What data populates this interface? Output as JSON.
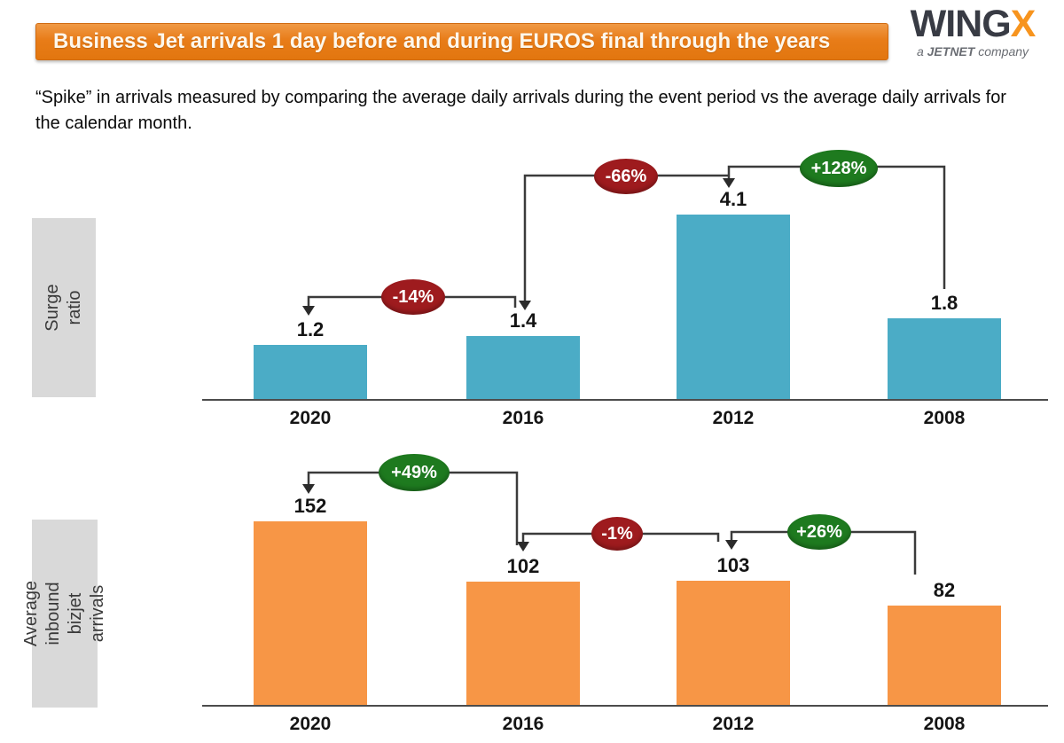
{
  "header": {
    "title": "Business Jet arrivals 1 day before and during EUROS final through the years",
    "logo": {
      "wing": "WING",
      "x": "X",
      "tagline_prefix": "a ",
      "tagline_brand": "JETNET",
      "tagline_suffix": " company"
    }
  },
  "subtitle": "“Spike” in arrivals measured by comparing the average daily arrivals during the event period vs the average daily arrivals for the calendar month.",
  "colors": {
    "banner_orange": "#E87C18",
    "bar_blue": "#4BACC6",
    "bar_orange": "#F79646",
    "badge_red": "#9E1B1E",
    "badge_green": "#1E7A1F",
    "axis_gray": "#4C4C4C",
    "label_box_gray": "#D9D9D9",
    "logo_dark": "#383B44",
    "logo_orange": "#F7941E"
  },
  "chart_data": [
    {
      "type": "bar",
      "title": "Surge ratio",
      "categories": [
        "2020",
        "2016",
        "2012",
        "2008"
      ],
      "values": [
        1.2,
        1.4,
        4.1,
        1.8
      ],
      "value_labels": [
        "1.2",
        "1.4",
        "4.1",
        "1.8"
      ],
      "ylim": [
        0,
        4.5
      ],
      "grid": false,
      "annotations": [
        {
          "label": "-14%",
          "from": "2016",
          "to": "2020",
          "color_key": "badge_red"
        },
        {
          "label": "-66%",
          "from": "2012",
          "to": "2016",
          "color_key": "badge_red"
        },
        {
          "label": "+128%",
          "from": "2008",
          "to": "2012",
          "color_key": "badge_green"
        }
      ]
    },
    {
      "type": "bar",
      "title": "Average inbound bizjet arrivals",
      "categories": [
        "2020",
        "2016",
        "2012",
        "2008"
      ],
      "values": [
        152,
        102,
        103,
        82
      ],
      "value_labels": [
        "152",
        "102",
        "103",
        "82"
      ],
      "ylim": [
        0,
        160
      ],
      "grid": false,
      "annotations": [
        {
          "label": "+49%",
          "from": "2016",
          "to": "2020",
          "color_key": "badge_green"
        },
        {
          "label": "-1%",
          "from": "2012",
          "to": "2016",
          "color_key": "badge_red"
        },
        {
          "label": "+26%",
          "from": "2008",
          "to": "2012",
          "color_key": "badge_green"
        }
      ]
    }
  ]
}
